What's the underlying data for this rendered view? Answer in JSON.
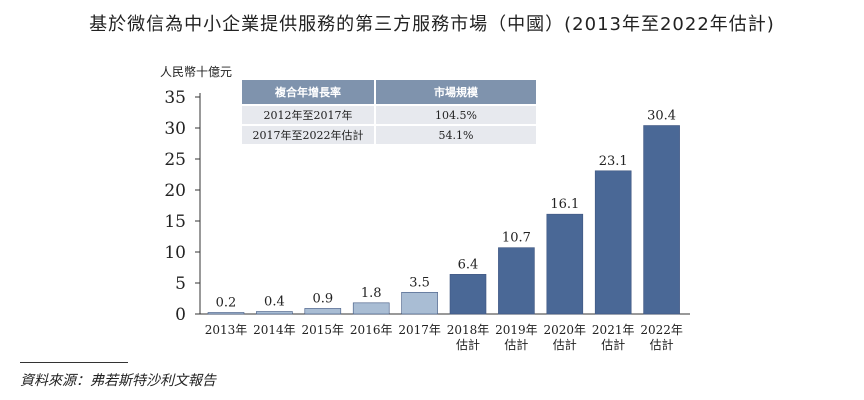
{
  "title": "基於微信為中小企業提供服務的第三方服務市場（中國）(2013年至2022年估計)",
  "chart_data": {
    "type": "bar",
    "ylabel": "人民幣十億元",
    "ylim": [
      0,
      35
    ],
    "yticks": [
      0,
      5,
      10,
      15,
      20,
      25,
      30,
      35
    ],
    "categories": [
      [
        "2013年"
      ],
      [
        "2014年"
      ],
      [
        "2015年"
      ],
      [
        "2016年"
      ],
      [
        "2017年"
      ],
      [
        "2018年",
        "估計"
      ],
      [
        "2019年",
        "估計"
      ],
      [
        "2020年",
        "估計"
      ],
      [
        "2021年",
        "估計"
      ],
      [
        "2022年",
        "估計"
      ]
    ],
    "values": [
      0.2,
      0.4,
      0.9,
      1.8,
      3.5,
      6.4,
      10.7,
      16.1,
      23.1,
      30.4
    ],
    "value_labels": [
      "0.2",
      "0.4",
      "0.9",
      "1.8",
      "3.5",
      "6.4",
      "10.7",
      "16.1",
      "23.1",
      "30.4"
    ],
    "historical_color": "#a9bdd4",
    "estimate_color": "#4a6896"
  },
  "table": {
    "headers": [
      "複合年增長率",
      "市場規模"
    ],
    "rows": [
      [
        "2012年至2017年",
        "104.5%"
      ],
      [
        "2017年至2022年估計",
        "54.1%"
      ]
    ]
  },
  "source": "資料來源：弗若斯特沙利文報告"
}
